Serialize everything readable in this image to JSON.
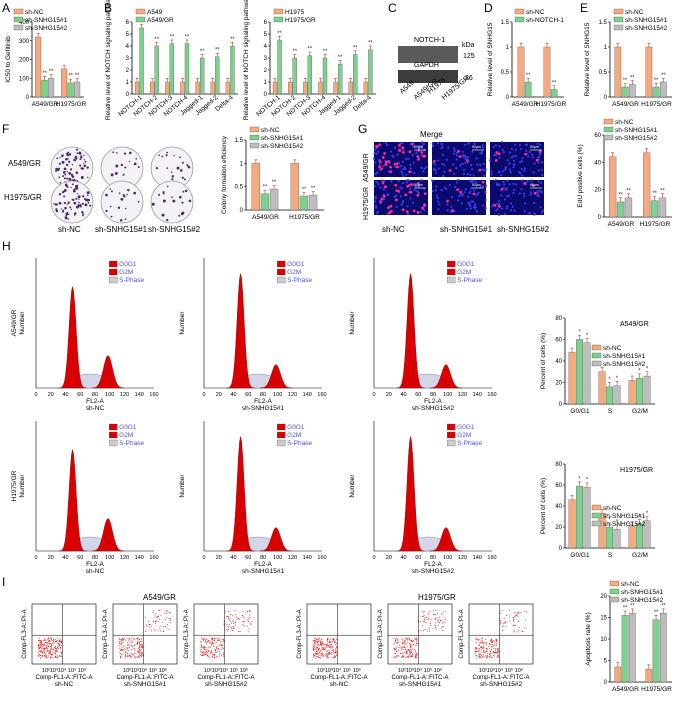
{
  "panel_letters": [
    "A",
    "B",
    "C",
    "D",
    "E",
    "F",
    "G",
    "H",
    "I"
  ],
  "colors": {
    "orange": "#f5a97f",
    "green": "#7fcf8e",
    "gray": "#bdbdbd",
    "red": "#ee1111",
    "blue": "#4f55d4",
    "flowred": "#d80000"
  },
  "legends": {
    "a": [
      "sh-NC",
      "sh-SNHG15#1",
      "sh-SNHG15#2"
    ],
    "b1": [
      "A549",
      "A549/GR"
    ],
    "b2": [
      "H1975",
      "H1975/GR"
    ],
    "d": [
      "sh-NC",
      "sh-NOTCH-1"
    ],
    "phase": [
      "G0G1",
      "G2M",
      "S-Phase"
    ]
  },
  "labels": {
    "ic50_ylabel": "IC50 to Gefitinib",
    "notch_ylabel": "Relative level of NOTCH signaling pathway",
    "snhg_ylabel": "Relative level of SNHG15",
    "colony_ylabel": "Colony formation efficiency",
    "edu_ylabel": "EdU positive cells (%)",
    "percent_ylabel": "Percent of cells (%)",
    "apoptosis_ylabel": "Apoptosis rate (%)",
    "flow_x": "FL2-A",
    "flow_y": "Number",
    "annex_x": "Comp-FL1-A::FITC-A",
    "annex_y": "Comp-FL3-A::PI-A",
    "annex_ticks": "10²10³10⁴ 10⁵ 10⁶",
    "merge": "Merge",
    "scalebar": "50μm",
    "a549gr": "A549/GR",
    "h1975gr": "H1975/GR",
    "shnc": "sh-NC",
    "sh1": "sh-SNHG15#1",
    "sh2": "sh-SNHG15#2",
    "kda": "kDa",
    "blot_notch": "NOTCH-1",
    "blot_gapdh": "GAPDH",
    "sig": "**",
    "sig1": "*",
    "phase_cats": [
      "G0/G1",
      "S",
      "G2/M"
    ],
    "cells_cats": [
      "A549/GR",
      "H1975/GR"
    ],
    "blot_lanes": [
      "A549",
      "A549/GR",
      "H1975",
      "H1975/GR"
    ],
    "flow_xticks": [
      "0",
      "20",
      "40",
      "60",
      "80",
      "100",
      "120",
      "140",
      "160"
    ]
  },
  "chart_data": [
    {
      "id": "A",
      "type": "bar",
      "categories": [
        "A549/GR",
        "H1975/GR"
      ],
      "ylabel": "IC50 to Gefitinib",
      "ylim": [
        0,
        400
      ],
      "yticks": [
        0,
        100,
        200,
        300,
        400
      ],
      "series": [
        {
          "name": "sh-NC",
          "values": [
            320,
            150
          ]
        },
        {
          "name": "sh-SNHG15#1",
          "values": [
            90,
            75
          ]
        },
        {
          "name": "sh-SNHG15#2",
          "values": [
            100,
            80
          ]
        }
      ]
    },
    {
      "id": "B1",
      "type": "bar",
      "categories": [
        "NOTCH-1",
        "NOTCH-2",
        "NOTCH-3",
        "NOTCH-4",
        "Jagged-1",
        "Jagged-2",
        "Delta-4"
      ],
      "ylabel": "Relative level of NOTCH signaling pathway",
      "ylim": [
        0,
        6
      ],
      "yticks": [
        0,
        1,
        2,
        3,
        4,
        5,
        6
      ],
      "series": [
        {
          "name": "A549",
          "values": [
            1,
            1,
            1,
            1,
            1,
            1,
            1
          ]
        },
        {
          "name": "A549/GR",
          "values": [
            5.5,
            4.0,
            4.2,
            4.2,
            3.0,
            3.1,
            4.0
          ]
        }
      ]
    },
    {
      "id": "B2",
      "type": "bar",
      "categories": [
        "NOTCH-1",
        "NOTCH-2",
        "NOTCH-3",
        "NOTCH-4",
        "Jagged-1",
        "Jagged-2",
        "Delta-4"
      ],
      "ylabel": "Relative level of NOTCH signaling pathway",
      "ylim": [
        0,
        6
      ],
      "yticks": [
        0,
        1,
        2,
        3,
        4,
        5,
        6
      ],
      "series": [
        {
          "name": "H1975",
          "values": [
            1,
            1,
            1,
            1,
            1,
            1,
            1
          ]
        },
        {
          "name": "H1975/GR",
          "values": [
            4.5,
            3.0,
            3.2,
            3.0,
            2.5,
            3.3,
            3.7
          ]
        }
      ]
    },
    {
      "id": "D",
      "type": "bar",
      "categories": [
        "A549/GR",
        "H1975/GR"
      ],
      "ylabel": "Relative level of SNHG15",
      "ylim": [
        0,
        1.5
      ],
      "yticks": [
        0,
        0.5,
        1.0,
        1.5
      ],
      "series": [
        {
          "name": "sh-NC",
          "values": [
            1.0,
            1.0
          ]
        },
        {
          "name": "sh-NOTCH-1",
          "values": [
            0.3,
            0.15
          ]
        }
      ]
    },
    {
      "id": "E",
      "type": "bar",
      "categories": [
        "A549/GR",
        "H1975/GR"
      ],
      "ylabel": "Relative level of SNHG15",
      "ylim": [
        0,
        1.5
      ],
      "yticks": [
        0,
        0.5,
        1.0,
        1.5
      ],
      "series": [
        {
          "name": "sh-NC",
          "values": [
            1.0,
            1.0
          ]
        },
        {
          "name": "sh-SNHG15#1",
          "values": [
            0.2,
            0.2
          ]
        },
        {
          "name": "sh-SNHG15#2",
          "values": [
            0.25,
            0.3
          ]
        }
      ]
    },
    {
      "id": "F",
      "type": "bar",
      "categories": [
        "A549/GR",
        "H1975/GR"
      ],
      "ylabel": "Colony formation efficiency",
      "ylim": [
        0,
        1.5
      ],
      "yticks": [
        0,
        0.5,
        1.0,
        1.5
      ],
      "series": [
        {
          "name": "sh-NC",
          "values": [
            1.0,
            1.0
          ]
        },
        {
          "name": "sh-SNHG15#1",
          "values": [
            0.35,
            0.3
          ]
        },
        {
          "name": "sh-SNHG15#2",
          "values": [
            0.45,
            0.32
          ]
        }
      ]
    },
    {
      "id": "G",
      "type": "bar",
      "categories": [
        "A549/GR",
        "H1975/GR"
      ],
      "ylabel": "EdU positive cells (%)",
      "ylim": [
        0,
        60
      ],
      "yticks": [
        0,
        20,
        40,
        60
      ],
      "series": [
        {
          "name": "sh-NC",
          "values": [
            44,
            47
          ]
        },
        {
          "name": "sh-SNHG15#1",
          "values": [
            11,
            12
          ]
        },
        {
          "name": "sh-SNHG15#2",
          "values": [
            14,
            14
          ]
        }
      ]
    },
    {
      "id": "H1",
      "type": "bar",
      "categories": [
        "G0/G1",
        "S",
        "G2/M"
      ],
      "ylabel": "Percent of cells (%)",
      "ylim": [
        0,
        80
      ],
      "yticks": [
        0,
        20,
        40,
        60,
        80
      ],
      "series": [
        {
          "name": "sh-NC",
          "values": [
            48,
            30,
            22
          ]
        },
        {
          "name": "sh-SNHG15#1",
          "values": [
            60,
            16,
            24
          ]
        },
        {
          "name": "sh-SNHG15#2",
          "values": [
            57,
            17,
            26
          ]
        }
      ]
    },
    {
      "id": "H2",
      "type": "bar",
      "categories": [
        "G0/G1",
        "S",
        "G2/M"
      ],
      "ylabel": "Percent of cells (%)",
      "ylim": [
        0,
        80
      ],
      "yticks": [
        0,
        20,
        40,
        60,
        80
      ],
      "series": [
        {
          "name": "sh-NC",
          "values": [
            46,
            33,
            21
          ]
        },
        {
          "name": "sh-SNHG15#1",
          "values": [
            59,
            20,
            23
          ]
        },
        {
          "name": "sh-SNHG15#2",
          "values": [
            58,
            18,
            26
          ]
        }
      ]
    },
    {
      "id": "I",
      "type": "bar",
      "categories": [
        "A549/GR",
        "H1975/GR"
      ],
      "ylabel": "Apoptosis rate (%)",
      "ylim": [
        0,
        20
      ],
      "yticks": [
        0,
        5,
        10,
        15,
        20
      ],
      "series": [
        {
          "name": "sh-NC",
          "values": [
            3.5,
            3.0
          ]
        },
        {
          "name": "sh-SNHG15#1",
          "values": [
            15.5,
            14.5
          ]
        },
        {
          "name": "sh-SNHG15#2",
          "values": [
            16,
            16
          ]
        }
      ]
    }
  ]
}
